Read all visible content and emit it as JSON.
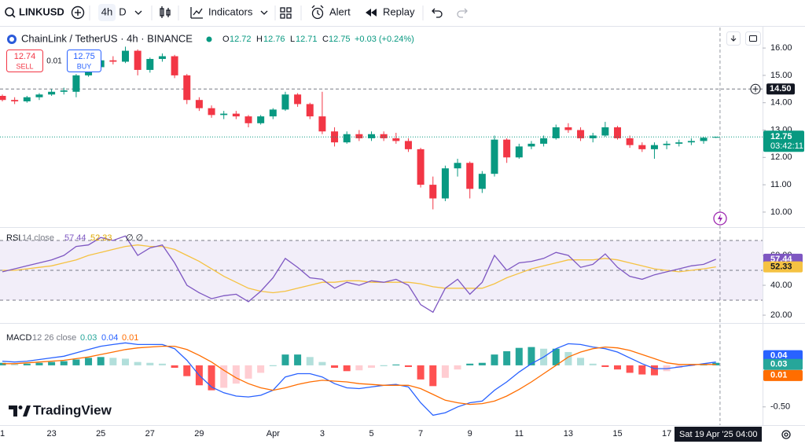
{
  "toolbar": {
    "symbol": "LINKUSD",
    "intervals": [
      "4h",
      "D"
    ],
    "buttons": [
      "Indicators",
      "Alert",
      "Replay"
    ]
  },
  "brand": "TradingView",
  "chart_data": [
    {
      "type": "candlestick",
      "title": "ChainLink / TetherUS · 4h · BINANCE",
      "ohlc_labels": [
        "O",
        "H",
        "L",
        "C"
      ],
      "change": "+0.03 (+0.24%)",
      "trade": {
        "sell_price": "12.74",
        "sell": "SELL",
        "spread": "0.01",
        "buy_price": "12.75",
        "buy": "BUY"
      },
      "categories": [
        "1",
        null,
        null,
        null,
        "23",
        null,
        null,
        null,
        "25",
        null,
        null,
        null,
        "27",
        null,
        null,
        null,
        "29",
        null,
        null,
        null,
        null,
        null,
        "Apr",
        null,
        null,
        null,
        "3",
        null,
        null,
        null,
        "5",
        null,
        null,
        null,
        "7",
        null,
        null,
        null,
        "9",
        null,
        null,
        null,
        "11",
        null,
        null,
        null,
        "13",
        null,
        null,
        null,
        "15",
        null,
        null,
        null,
        "17",
        null,
        null,
        null,
        null
      ],
      "open": [
        14.25,
        14.1,
        14.05,
        14.2,
        14.3,
        14.4,
        14.4,
        15.0,
        15.3,
        15.55,
        15.5,
        15.9,
        15.2,
        15.6,
        15.7,
        15.0,
        14.1,
        13.8,
        13.55,
        13.6,
        13.5,
        13.25,
        13.5,
        13.75,
        14.3,
        13.95,
        13.5,
        12.95,
        12.55,
        12.85,
        12.7,
        12.85,
        12.7,
        12.6,
        12.3,
        11.0,
        10.5,
        11.6,
        11.8,
        10.85,
        11.4,
        12.65,
        12.0,
        12.4,
        12.5,
        12.7,
        13.1,
        13.0,
        12.7,
        12.8,
        13.1,
        12.7,
        12.45,
        12.3,
        12.45,
        12.5,
        12.55,
        12.6,
        12.72
      ],
      "high": [
        14.3,
        14.2,
        14.25,
        14.35,
        14.5,
        14.55,
        15.05,
        15.4,
        15.65,
        15.7,
        16.05,
        15.95,
        15.65,
        15.8,
        15.75,
        15.05,
        14.2,
        13.9,
        13.7,
        13.7,
        13.55,
        13.55,
        13.8,
        14.4,
        14.35,
        14.0,
        14.4,
        13.1,
        12.95,
        13.0,
        12.95,
        12.95,
        12.9,
        12.7,
        12.35,
        11.3,
        11.7,
        11.95,
        11.85,
        11.5,
        12.8,
        12.7,
        12.5,
        12.6,
        12.8,
        13.2,
        13.25,
        13.1,
        12.9,
        13.3,
        13.15,
        12.8,
        12.55,
        12.55,
        12.6,
        12.65,
        12.7,
        12.75,
        12.76
      ],
      "low": [
        14.05,
        13.95,
        14.0,
        14.1,
        14.25,
        14.3,
        14.2,
        14.95,
        15.25,
        15.4,
        15.45,
        15.0,
        15.1,
        15.5,
        14.9,
        13.95,
        13.7,
        13.45,
        13.4,
        13.4,
        13.1,
        13.2,
        13.4,
        13.7,
        13.85,
        13.4,
        12.85,
        12.4,
        12.5,
        12.6,
        12.6,
        12.6,
        12.5,
        12.2,
        10.9,
        10.1,
        10.4,
        11.3,
        10.5,
        10.7,
        11.3,
        11.8,
        11.95,
        12.3,
        12.4,
        12.65,
        12.9,
        12.6,
        12.55,
        12.75,
        12.65,
        12.35,
        12.2,
        11.95,
        12.3,
        12.4,
        12.45,
        12.5,
        12.71
      ],
      "close": [
        14.1,
        14.05,
        14.2,
        14.3,
        14.4,
        14.45,
        15.0,
        15.3,
        15.55,
        15.5,
        15.9,
        15.2,
        15.6,
        15.7,
        15.0,
        14.1,
        13.8,
        13.55,
        13.6,
        13.5,
        13.25,
        13.5,
        13.75,
        14.3,
        13.95,
        13.5,
        12.95,
        12.55,
        12.85,
        12.7,
        12.85,
        12.7,
        12.6,
        12.3,
        11.0,
        10.5,
        11.6,
        11.8,
        10.85,
        11.4,
        12.65,
        12.0,
        12.4,
        12.5,
        12.7,
        13.1,
        13.0,
        12.7,
        12.8,
        13.1,
        12.7,
        12.45,
        12.3,
        12.45,
        12.5,
        12.55,
        12.6,
        12.72,
        12.75
      ],
      "up_color": "#089981",
      "down_color": "#f23645",
      "ylim": [
        9.48,
        16.75
      ],
      "yticks": [
        {
          "value": 16,
          "label": "16.00"
        },
        {
          "value": 15,
          "label": "15.00"
        },
        {
          "value": 14,
          "label": "14.00"
        },
        {
          "value": 13,
          "label": "13.00"
        },
        {
          "value": 12,
          "label": "12.00"
        },
        {
          "value": 11,
          "label": "11.00"
        },
        {
          "value": 10,
          "label": "10.00"
        }
      ],
      "grid": false,
      "price_line": {
        "value": 14.5,
        "label": "14.50"
      },
      "countdown": "03:42:11",
      "crosshair": {
        "date": "Sat 19 Apr '25",
        "time": "04:00"
      }
    },
    {
      "type": "line",
      "title": "RSI",
      "params": "14 close",
      "extra": "∅ ∅",
      "series": [
        {
          "color": "#7e57c2",
          "values": [
            49,
            51,
            53,
            55,
            57,
            60,
            66,
            67,
            72,
            70,
            73,
            60,
            65,
            67,
            55,
            40,
            35,
            31,
            33,
            34,
            29,
            36,
            45,
            58,
            52,
            45,
            44,
            38,
            42,
            40,
            43,
            42,
            44,
            40,
            27,
            22,
            38,
            44,
            34,
            42,
            60,
            50,
            55,
            56,
            58,
            62,
            60,
            52,
            54,
            61,
            52,
            46,
            44,
            47,
            49,
            51,
            53,
            54,
            57.44
          ]
        },
        {
          "color": "#f5c242",
          "values": [
            50,
            50,
            51,
            52,
            53,
            55,
            57,
            60,
            62,
            64,
            66,
            67,
            66,
            66,
            64,
            60,
            56,
            51,
            46,
            42,
            38,
            36,
            35,
            36,
            38,
            40,
            42,
            42,
            43,
            43,
            42,
            42,
            42,
            42,
            41,
            39,
            38,
            38,
            38,
            38,
            41,
            45,
            48,
            51,
            53,
            55,
            57,
            57,
            57,
            58,
            57,
            55,
            53,
            51,
            50,
            49,
            50,
            51,
            52.33
          ]
        }
      ],
      "bands": [
        70,
        50,
        30
      ],
      "band_color": "#7e57c2",
      "ylim": [
        15.3,
        78.4
      ],
      "yticks": [
        {
          "value": 60,
          "label": "60.00"
        },
        {
          "value": 40,
          "label": "40.00"
        },
        {
          "value": 20,
          "label": "20.00"
        }
      ],
      "grid": false
    },
    {
      "type": "macd",
      "title": "MACD",
      "params": "12 26 close",
      "histogram": {
        "values": [
          0.03,
          0.02,
          0.02,
          0.03,
          0.04,
          0.05,
          0.07,
          0.09,
          0.1,
          0.09,
          0.08,
          0.04,
          0.03,
          0.02,
          -0.03,
          -0.13,
          -0.24,
          -0.3,
          -0.27,
          -0.22,
          -0.16,
          -0.09,
          0.0,
          0.13,
          0.13,
          0.1,
          0.04,
          -0.03,
          -0.07,
          -0.06,
          -0.03,
          0.0,
          0.01,
          -0.02,
          -0.17,
          -0.25,
          -0.15,
          -0.05,
          0.02,
          0.03,
          0.13,
          0.17,
          0.21,
          0.22,
          0.2,
          0.2,
          0.16,
          0.09,
          0.02,
          -0.02,
          -0.05,
          -0.09,
          -0.11,
          -0.12,
          -0.07,
          -0.03,
          -0.01,
          0.01,
          0.03
        ],
        "colors": [
          "#26a69a",
          "#b2dfdb",
          "#ffcdd2",
          "#ff5252"
        ]
      },
      "series": [
        {
          "color": "#2962ff",
          "values": [
            0.05,
            0.04,
            0.05,
            0.07,
            0.09,
            0.11,
            0.15,
            0.19,
            0.23,
            0.25,
            0.27,
            0.25,
            0.25,
            0.25,
            0.2,
            0.06,
            -0.12,
            -0.26,
            -0.33,
            -0.37,
            -0.38,
            -0.36,
            -0.3,
            -0.14,
            -0.1,
            -0.1,
            -0.14,
            -0.22,
            -0.27,
            -0.28,
            -0.26,
            -0.24,
            -0.23,
            -0.26,
            -0.45,
            -0.6,
            -0.57,
            -0.5,
            -0.45,
            -0.43,
            -0.3,
            -0.2,
            -0.08,
            0.02,
            0.1,
            0.2,
            0.26,
            0.25,
            0.22,
            0.2,
            0.16,
            0.09,
            0.02,
            -0.04,
            -0.04,
            -0.02,
            0.0,
            0.02,
            0.04
          ]
        },
        {
          "color": "#ff6d00",
          "values": [
            0.02,
            0.02,
            0.03,
            0.04,
            0.05,
            0.06,
            0.08,
            0.1,
            0.13,
            0.16,
            0.19,
            0.21,
            0.22,
            0.23,
            0.23,
            0.19,
            0.12,
            0.04,
            -0.06,
            -0.15,
            -0.22,
            -0.27,
            -0.3,
            -0.27,
            -0.23,
            -0.2,
            -0.18,
            -0.19,
            -0.2,
            -0.22,
            -0.23,
            -0.24,
            -0.24,
            -0.24,
            -0.28,
            -0.35,
            -0.42,
            -0.45,
            -0.47,
            -0.46,
            -0.43,
            -0.37,
            -0.29,
            -0.2,
            -0.1,
            0.0,
            0.1,
            0.16,
            0.2,
            0.22,
            0.21,
            0.18,
            0.13,
            0.08,
            0.03,
            0.01,
            0.01,
            0.01,
            0.01
          ]
        }
      ],
      "ylim": [
        -0.71,
        0.5
      ],
      "yticks": [
        {
          "value": -0.5,
          "label": "-0.50"
        }
      ],
      "grid": false
    }
  ]
}
